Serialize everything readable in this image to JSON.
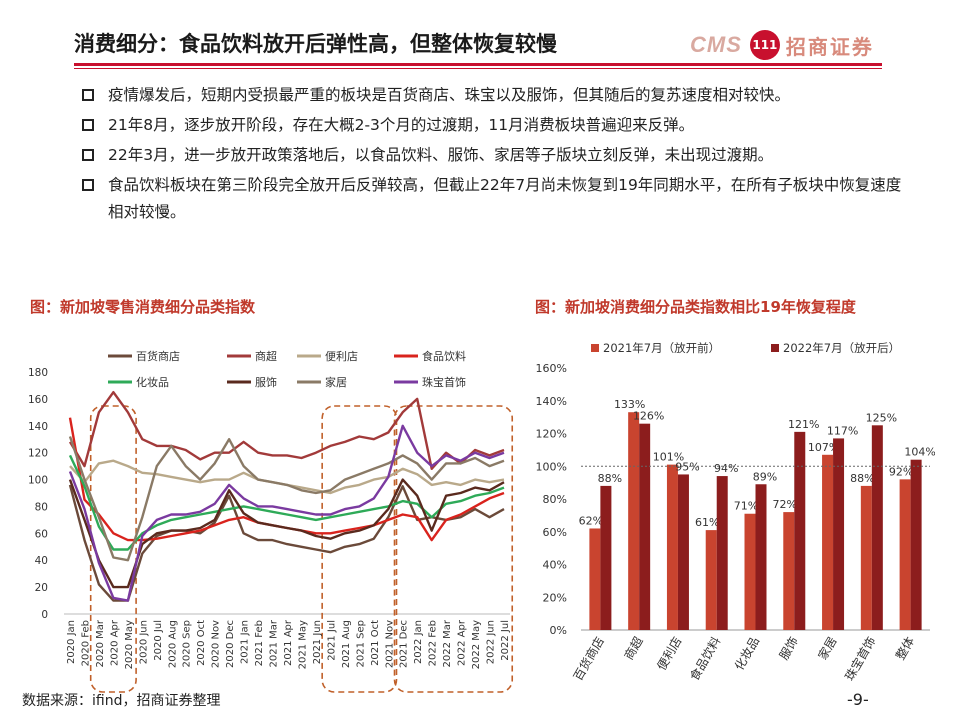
{
  "title": "消费细分：食品饮料放开后弹性高，但整体恢复较慢",
  "logo": {
    "cms": "CMS",
    "circle": "111",
    "text": "招商证券"
  },
  "bullets": [
    "疫情爆发后，短期内受损最严重的板块是百货商店、珠宝以及服饰，但其随后的复苏速度相对较快。",
    "21年8月，逐步放开阶段，存在大概2-3个月的过渡期，11月消费板块普遍迎来反弹。",
    "22年3月，进一步放开政策落地后，以食品饮料、服饰、家居等子版块立刻反弹，未出现过渡期。",
    "食品饮料板块在第三阶段完全放开后反弹较高，但截止22年7月尚未恢复到19年同期水平，在所有子板块中恢复速度相对较慢。"
  ],
  "fig1_title": "图：新加坡零售消费细分品类指数",
  "fig2_title": "图：新加坡消费细分品类指数相比19年恢复程度",
  "footer": "数据来源：ifind，招商证券整理",
  "page_number": "-9-",
  "colors": {
    "accent": "#c8102e",
    "dashed": "#c0602a"
  },
  "chart_data": [
    {
      "type": "line",
      "title": "新加坡零售消费细分品类指数",
      "ylim": [
        0,
        180
      ],
      "yticks": [
        0,
        20,
        40,
        60,
        80,
        100,
        120,
        140,
        160,
        180
      ],
      "categories": [
        "2020 Jan",
        "2020 Feb",
        "2020 Mar",
        "2020 Apr",
        "2020 May",
        "2020 Jun",
        "2020 Jul",
        "2020 Aug",
        "2020 Sep",
        "2020 Oct",
        "2020 Nov",
        "2020 Dec",
        "2021 Jan",
        "2021 Feb",
        "2021 Mar",
        "2021 Apr",
        "2021 May",
        "2021 Jun",
        "2021 Jul",
        "2021 Aug",
        "2021 Sep",
        "2021 Oct",
        "2021 Nov",
        "2021 Dec",
        "2022 Jan",
        "2022 Feb",
        "2022 Mar",
        "2022 Apr",
        "2022 May",
        "2022 Jun",
        "2022 Jul"
      ],
      "highlight_ranges": [
        [
          2,
          4
        ],
        [
          18,
          22
        ],
        [
          23,
          30
        ]
      ],
      "series": [
        {
          "name": "百货商店",
          "color": "#6b4a3a",
          "values": [
            96,
            55,
            22,
            10,
            10,
            45,
            58,
            62,
            62,
            60,
            68,
            88,
            60,
            55,
            55,
            52,
            50,
            48,
            46,
            50,
            52,
            56,
            72,
            95,
            70,
            72,
            70,
            72,
            78,
            72,
            78
          ]
        },
        {
          "name": "商超",
          "color": "#a23a3a",
          "values": [
            128,
            110,
            150,
            165,
            150,
            130,
            125,
            125,
            122,
            115,
            120,
            120,
            128,
            120,
            118,
            118,
            116,
            120,
            125,
            128,
            132,
            130,
            135,
            150,
            160,
            108,
            120,
            112,
            122,
            118,
            122
          ]
        },
        {
          "name": "便利店",
          "color": "#b9a98a",
          "values": [
            110,
            98,
            112,
            114,
            110,
            105,
            104,
            102,
            100,
            98,
            100,
            100,
            105,
            100,
            98,
            96,
            94,
            92,
            90,
            94,
            96,
            100,
            102,
            108,
            104,
            96,
            98,
            96,
            100,
            98,
            100
          ]
        },
        {
          "name": "食品饮料",
          "color": "#d9231d",
          "values": [
            146,
            85,
            74,
            60,
            55,
            55,
            56,
            58,
            60,
            62,
            66,
            70,
            72,
            68,
            66,
            64,
            62,
            60,
            60,
            62,
            64,
            66,
            70,
            74,
            72,
            55,
            70,
            74,
            80,
            86,
            90
          ]
        },
        {
          "name": "化妆品",
          "color": "#2eaa58",
          "values": [
            118,
            95,
            65,
            48,
            48,
            60,
            66,
            70,
            72,
            74,
            76,
            78,
            80,
            78,
            76,
            74,
            72,
            70,
            72,
            74,
            76,
            78,
            80,
            84,
            82,
            72,
            82,
            84,
            88,
            90,
            94
          ]
        },
        {
          "name": "服饰",
          "color": "#5a2a1e",
          "values": [
            100,
            70,
            40,
            20,
            20,
            52,
            60,
            62,
            62,
            64,
            70,
            92,
            75,
            68,
            66,
            64,
            62,
            58,
            56,
            60,
            62,
            66,
            78,
            100,
            88,
            62,
            88,
            90,
            94,
            92,
            98
          ]
        },
        {
          "name": "家居",
          "color": "#8a7a66",
          "values": [
            132,
            100,
            72,
            42,
            40,
            72,
            110,
            125,
            110,
            100,
            112,
            130,
            110,
            100,
            98,
            96,
            92,
            90,
            92,
            100,
            104,
            108,
            112,
            118,
            112,
            100,
            112,
            112,
            116,
            110,
            114
          ]
        },
        {
          "name": "珠宝首饰",
          "color": "#7a3aa0",
          "values": [
            106,
            78,
            38,
            12,
            10,
            58,
            70,
            74,
            74,
            76,
            82,
            96,
            86,
            80,
            80,
            78,
            76,
            74,
            74,
            78,
            80,
            86,
            102,
            140,
            120,
            110,
            118,
            114,
            120,
            116,
            120
          ]
        }
      ]
    },
    {
      "type": "bar",
      "title": "新加坡消费细分品类指数相比19年恢复程度",
      "ylim": [
        0,
        160
      ],
      "yticks": [
        "0%",
        "20%",
        "40%",
        "60%",
        "80%",
        "100%",
        "120%",
        "140%",
        "160%"
      ],
      "categories": [
        "百货商店",
        "商超",
        "便利店",
        "食品饮料",
        "化妆品",
        "服饰",
        "家居",
        "珠宝首饰",
        "整体"
      ],
      "series": [
        {
          "name": "2021年7月（放开前）",
          "color": "#c9442f",
          "values": [
            62,
            133,
            101,
            61,
            71,
            72,
            107,
            88,
            92
          ],
          "labels": [
            "62%",
            "133%",
            "101%",
            "61%",
            "71%",
            "72%",
            "107%",
            "88%",
            "92%"
          ]
        },
        {
          "name": "2022年7月（放开后）",
          "color": "#8c1d1d",
          "values": [
            88,
            126,
            95,
            94,
            89,
            121,
            117,
            125,
            104
          ],
          "labels": [
            "88%",
            "126%",
            "95%",
            "94%",
            "89%",
            "121%",
            "117%",
            "125%",
            "104%"
          ]
        }
      ],
      "reference_line": 100
    }
  ]
}
